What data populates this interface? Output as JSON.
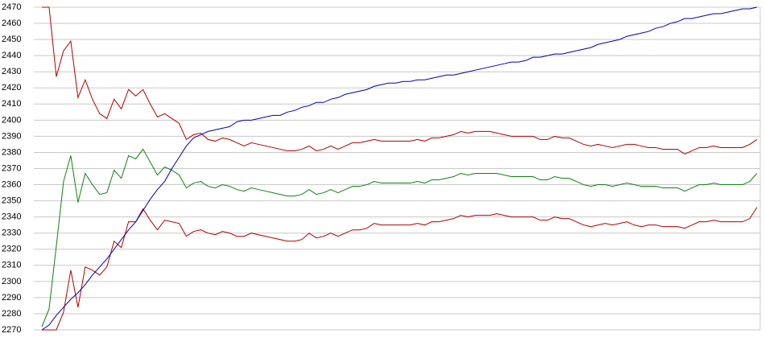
{
  "chart_data": {
    "type": "line",
    "ylim": [
      2270,
      2470
    ],
    "yticks": [
      2270,
      2280,
      2290,
      2300,
      2310,
      2320,
      2330,
      2340,
      2350,
      2360,
      2370,
      2380,
      2390,
      2400,
      2410,
      2420,
      2430,
      2440,
      2450,
      2460,
      2470
    ],
    "grid": true,
    "series": [
      {
        "color": "#b00000",
        "values": [
          2470,
          2470,
          2427,
          2443,
          2449,
          2414,
          2425,
          2413,
          2404,
          2401,
          2413,
          2407,
          2419,
          2415,
          2419,
          2410,
          2402,
          2404,
          2401,
          2398,
          2388,
          2391,
          2392,
          2388,
          2387,
          2389,
          2388,
          2386,
          2384,
          2386,
          2385,
          2384,
          2383,
          2382,
          2381,
          2381,
          2382,
          2384,
          2381,
          2382,
          2384,
          2382,
          2384,
          2386,
          2386,
          2387,
          2388,
          2387,
          2387,
          2387,
          2387,
          2387,
          2388,
          2387,
          2389,
          2389,
          2390,
          2391,
          2393,
          2392,
          2393,
          2393,
          2393,
          2392,
          2391,
          2390,
          2390,
          2390,
          2390,
          2388,
          2388,
          2390,
          2389,
          2389,
          2387,
          2385,
          2384,
          2385,
          2384,
          2383,
          2384,
          2385,
          2385,
          2384,
          2383,
          2383,
          2382,
          2382,
          2382,
          2379,
          2381,
          2383,
          2383,
          2384,
          2383,
          2383,
          2383,
          2383,
          2385,
          2388
        ]
      },
      {
        "color": "#108010",
        "values": [
          2272,
          2283,
          2322,
          2362,
          2378,
          2349,
          2367,
          2360,
          2354,
          2355,
          2369,
          2364,
          2378,
          2376,
          2382,
          2374,
          2366,
          2371,
          2369,
          2366,
          2358,
          2361,
          2362,
          2359,
          2358,
          2360,
          2359,
          2357,
          2356,
          2358,
          2357,
          2356,
          2355,
          2354,
          2353,
          2353,
          2354,
          2357,
          2354,
          2355,
          2357,
          2355,
          2357,
          2359,
          2359,
          2360,
          2362,
          2361,
          2361,
          2361,
          2361,
          2361,
          2362,
          2361,
          2363,
          2363,
          2364,
          2365,
          2367,
          2366,
          2367,
          2367,
          2367,
          2367,
          2366,
          2365,
          2365,
          2365,
          2365,
          2363,
          2363,
          2365,
          2364,
          2364,
          2362,
          2360,
          2359,
          2360,
          2360,
          2359,
          2360,
          2361,
          2360,
          2359,
          2359,
          2359,
          2358,
          2358,
          2358,
          2356,
          2358,
          2360,
          2360,
          2361,
          2360,
          2360,
          2360,
          2360,
          2362,
          2367
        ]
      },
      {
        "color": "#b00000",
        "values": [
          2270,
          2270,
          2270,
          2281,
          2307,
          2284,
          2309,
          2307,
          2304,
          2309,
          2325,
          2321,
          2337,
          2337,
          2345,
          2338,
          2332,
          2338,
          2337,
          2336,
          2328,
          2331,
          2332,
          2330,
          2329,
          2331,
          2330,
          2328,
          2328,
          2330,
          2329,
          2328,
          2327,
          2326,
          2325,
          2325,
          2326,
          2330,
          2327,
          2328,
          2330,
          2328,
          2330,
          2332,
          2332,
          2333,
          2336,
          2335,
          2335,
          2335,
          2335,
          2335,
          2336,
          2335,
          2337,
          2337,
          2338,
          2339,
          2341,
          2340,
          2341,
          2341,
          2341,
          2342,
          2341,
          2340,
          2340,
          2340,
          2340,
          2338,
          2338,
          2340,
          2339,
          2339,
          2337,
          2335,
          2334,
          2335,
          2336,
          2335,
          2336,
          2337,
          2335,
          2334,
          2335,
          2335,
          2334,
          2334,
          2334,
          2333,
          2335,
          2337,
          2337,
          2338,
          2337,
          2337,
          2337,
          2337,
          2339,
          2346
        ]
      },
      {
        "color": "#0000b0",
        "values": [
          2270,
          2273,
          2279,
          2284,
          2289,
          2293,
          2298,
          2304,
          2309,
          2314,
          2320,
          2326,
          2332,
          2337,
          2344,
          2351,
          2357,
          2362,
          2370,
          2377,
          2384,
          2389,
          2391,
          2393,
          2394,
          2395,
          2396,
          2399,
          2400,
          2400,
          2401,
          2402,
          2403,
          2403,
          2405,
          2406,
          2408,
          2409,
          2411,
          2411,
          2413,
          2414,
          2416,
          2417,
          2418,
          2419,
          2421,
          2422,
          2423,
          2423,
          2424,
          2424,
          2425,
          2425,
          2426,
          2427,
          2428,
          2428,
          2429,
          2430,
          2431,
          2432,
          2433,
          2434,
          2435,
          2436,
          2436,
          2437,
          2439,
          2439,
          2440,
          2441,
          2441,
          2442,
          2443,
          2444,
          2445,
          2447,
          2448,
          2449,
          2450,
          2452,
          2453,
          2454,
          2455,
          2457,
          2458,
          2460,
          2461,
          2463,
          2463,
          2464,
          2465,
          2466,
          2466,
          2467,
          2468,
          2469,
          2469,
          2470
        ]
      }
    ]
  }
}
